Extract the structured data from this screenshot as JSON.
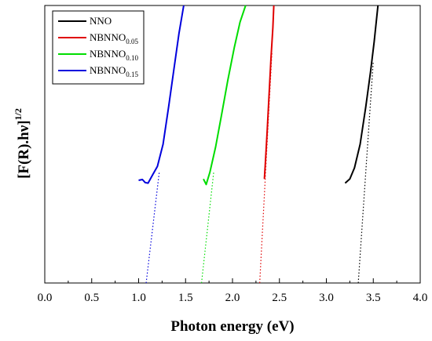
{
  "chart_data": {
    "type": "line",
    "title": "",
    "xlabel": "Photon energy (eV)",
    "ylabel": "[F(R).hν]",
    "ylabel_exponent": "1/2",
    "xlim": [
      0.0,
      4.0
    ],
    "ylim": [
      0,
      10
    ],
    "xticks": [
      "0.0",
      "0.5",
      "1.0",
      "1.5",
      "2.0",
      "2.5",
      "3.0",
      "3.5",
      "4.0"
    ],
    "y_ticks_shown": false,
    "grid": false,
    "legend_position": "top-left",
    "series": [
      {
        "name": "NNO",
        "base": "NNO",
        "sub": "",
        "color": "#000000",
        "data": [
          [
            3.2,
            3.6
          ],
          [
            3.25,
            3.75
          ],
          [
            3.3,
            4.15
          ],
          [
            3.36,
            5.0
          ],
          [
            3.42,
            6.35
          ],
          [
            3.47,
            7.6
          ],
          [
            3.51,
            8.7
          ],
          [
            3.55,
            10.0
          ]
        ],
        "extrapolation": [
          [
            3.34,
            0.0
          ],
          [
            3.5,
            8.0
          ]
        ]
      },
      {
        "name": "NBNNO0.05",
        "base": "NBNNO",
        "sub": "0.05",
        "color": "#e00000",
        "data": [
          [
            2.34,
            3.75
          ],
          [
            2.35,
            4.3
          ],
          [
            2.37,
            5.5
          ],
          [
            2.39,
            6.8
          ],
          [
            2.41,
            8.1
          ],
          [
            2.43,
            9.2
          ],
          [
            2.44,
            10.0
          ]
        ],
        "extrapolation": [
          [
            2.29,
            0.0
          ],
          [
            2.42,
            8.3
          ]
        ]
      },
      {
        "name": "NBNNO0.10",
        "base": "NBNNO",
        "sub": "0.10",
        "color": "#00dd00",
        "data": [
          [
            1.69,
            3.75
          ],
          [
            1.72,
            3.55
          ],
          [
            1.76,
            4.0
          ],
          [
            1.82,
            4.9
          ],
          [
            1.88,
            6.0
          ],
          [
            1.95,
            7.3
          ],
          [
            2.02,
            8.5
          ],
          [
            2.08,
            9.4
          ],
          [
            2.14,
            10.0
          ]
        ],
        "extrapolation": [
          [
            1.67,
            0.0
          ],
          [
            1.8,
            4.0
          ]
        ]
      },
      {
        "name": "NBNNO0.15",
        "base": "NBNNO",
        "sub": "0.15",
        "color": "#0000dd",
        "data": [
          [
            1.0,
            3.7
          ],
          [
            1.04,
            3.73
          ],
          [
            1.07,
            3.62
          ],
          [
            1.1,
            3.6
          ],
          [
            1.15,
            3.9
          ],
          [
            1.2,
            4.2
          ],
          [
            1.26,
            5.0
          ],
          [
            1.32,
            6.35
          ],
          [
            1.38,
            7.8
          ],
          [
            1.43,
            9.0
          ],
          [
            1.48,
            10.0
          ]
        ],
        "extrapolation": [
          [
            1.08,
            0.0
          ],
          [
            1.22,
            4.0
          ]
        ]
      }
    ]
  }
}
